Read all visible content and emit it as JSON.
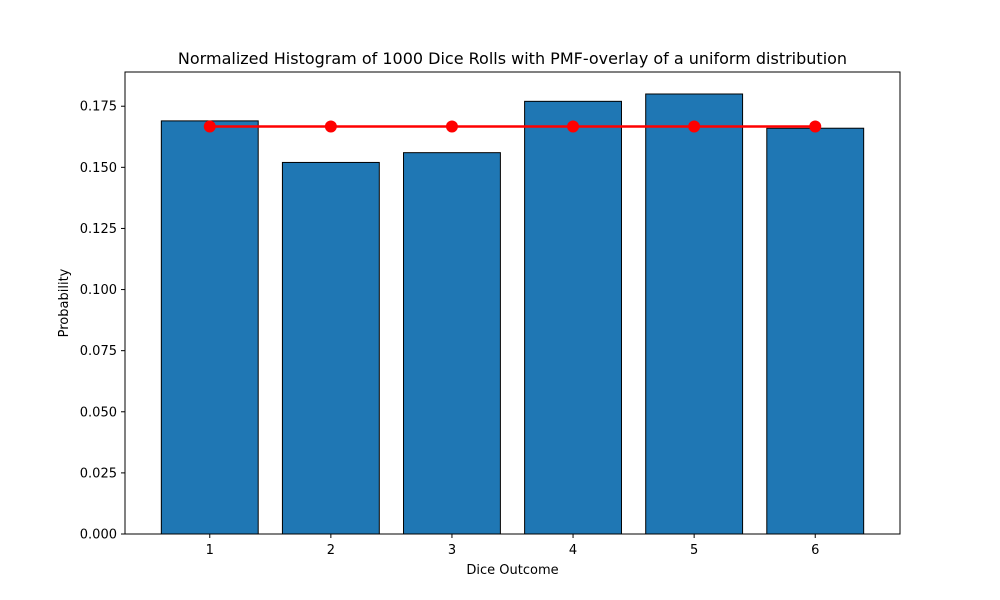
{
  "chart_data": {
    "type": "bar",
    "title": "Normalized Histogram of 1000 Dice Rolls with PMF-overlay of a uniform distribution",
    "xlabel": "Dice Outcome",
    "ylabel": "Probability",
    "categories": [
      "1",
      "2",
      "3",
      "4",
      "5",
      "6"
    ],
    "x": [
      1,
      2,
      3,
      4,
      5,
      6
    ],
    "values": [
      0.169,
      0.152,
      0.156,
      0.177,
      0.18,
      0.166
    ],
    "overlay": {
      "type": "line",
      "x": [
        1,
        2,
        3,
        4,
        5,
        6
      ],
      "values": [
        0.1667,
        0.1667,
        0.1667,
        0.1667,
        0.1667,
        0.1667
      ]
    },
    "xlim": [
      0.3,
      6.7
    ],
    "ylim": [
      0,
      0.189
    ],
    "yticks": [
      0.0,
      0.025,
      0.05,
      0.075,
      0.1,
      0.125,
      0.15,
      0.175
    ],
    "ytick_labels": [
      "0.000",
      "0.025",
      "0.050",
      "0.075",
      "0.100",
      "0.125",
      "0.150",
      "0.175"
    ],
    "grid": false,
    "colors": {
      "bar": "#1f77b4",
      "bar_edge": "#000000",
      "overlay": "#ff0000"
    }
  }
}
